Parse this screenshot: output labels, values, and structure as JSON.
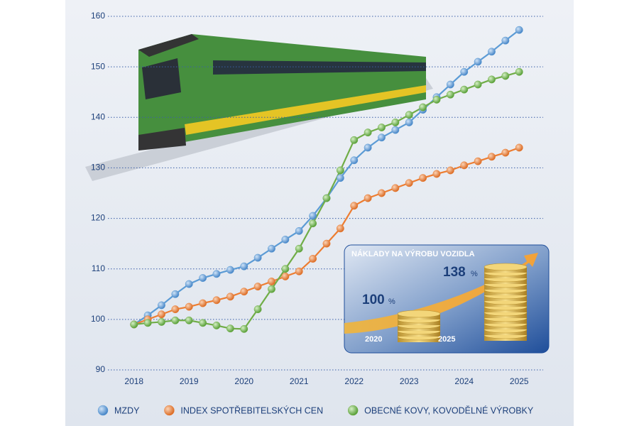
{
  "chart_data": {
    "type": "line",
    "x": [
      2018,
      2018.25,
      2018.5,
      2018.75,
      2019,
      2019.25,
      2019.5,
      2019.75,
      2020,
      2020.25,
      2020.5,
      2020.75,
      2021,
      2021.25,
      2021.5,
      2021.75,
      2022,
      2022.25,
      2022.5,
      2022.75,
      2023,
      2023.25,
      2023.5,
      2023.75,
      2024,
      2024.25,
      2024.5,
      2024.75,
      2025
    ],
    "xlim": [
      2017.5,
      2025.5
    ],
    "xticks": [
      2018,
      2019,
      2020,
      2021,
      2022,
      2023,
      2024,
      2025
    ],
    "ylim": [
      90,
      160
    ],
    "yticks": [
      90,
      100,
      110,
      120,
      130,
      140,
      150,
      160
    ],
    "grid": true,
    "legend": "bottom",
    "series": [
      {
        "name": "MZDY",
        "color": "#5b9bd5",
        "values": [
          99,
          100.8,
          102.8,
          105,
          107,
          108.2,
          109,
          109.8,
          110.5,
          112.2,
          114,
          115.8,
          117.5,
          120.5,
          124,
          128,
          131.5,
          134,
          136,
          137.5,
          139,
          141.5,
          144,
          146.5,
          149,
          151,
          153,
          155.2,
          157.3
        ]
      },
      {
        "name": "INDEX SPOTŘEBITELSKÝCH CEN",
        "color": "#ed7d31",
        "values": [
          99,
          100,
          101,
          102,
          102.5,
          103.2,
          103.8,
          104.5,
          105.5,
          106.5,
          107.5,
          108.5,
          109.5,
          112,
          115,
          118,
          122.5,
          124,
          125,
          126,
          127,
          128,
          128.8,
          129.5,
          130.5,
          131.3,
          132.2,
          133,
          134
        ]
      },
      {
        "name": "OBECNÉ KOVY, KOVODĚLNÉ VÝROBKY",
        "color": "#70ad47",
        "values": [
          99,
          99.3,
          99.5,
          99.8,
          99.8,
          99.3,
          98.8,
          98.2,
          98.1,
          102,
          106,
          110,
          114,
          119,
          124,
          129.5,
          135.5,
          137,
          138,
          139,
          140.5,
          142,
          143.5,
          144.5,
          145.5,
          146.5,
          147.5,
          148.2,
          149
        ]
      }
    ],
    "inset": {
      "title": "NÁKLADY NA VÝROBU VOZIDLA",
      "items": [
        {
          "year": "2020",
          "value": 100,
          "unit": "%"
        },
        {
          "year": "2025",
          "value": 138,
          "unit": "%"
        }
      ]
    }
  }
}
